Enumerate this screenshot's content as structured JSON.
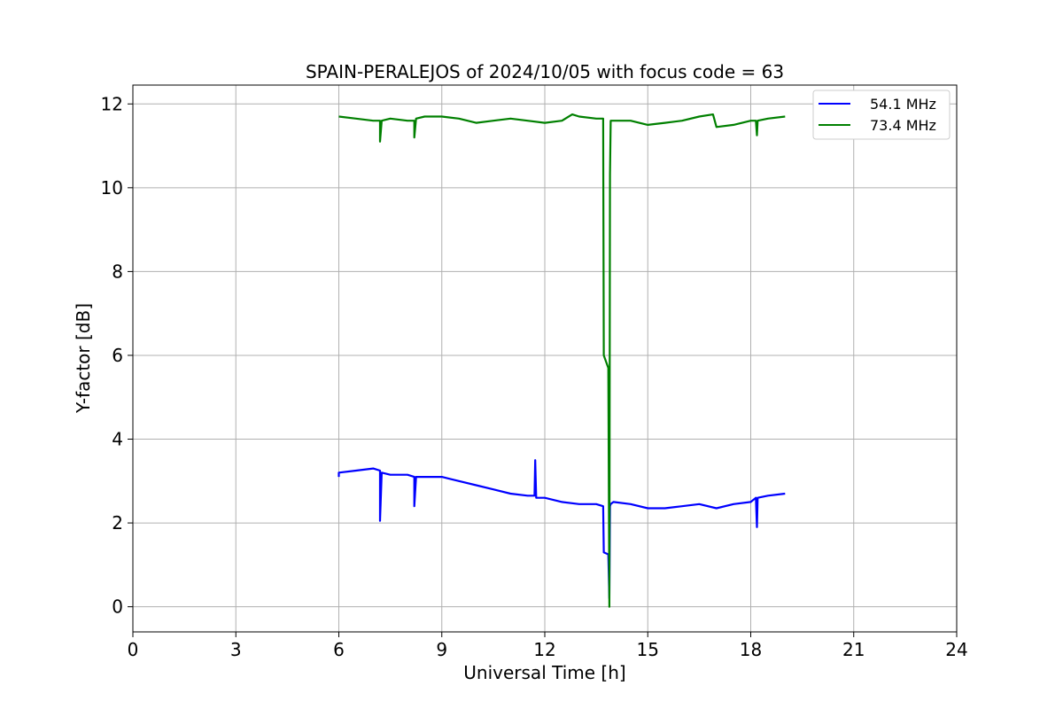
{
  "chart_data": {
    "type": "line",
    "title": "SPAIN-PERALEJOS of 2024/10/05 with focus code = 63",
    "xlabel": "Universal Time [h]",
    "ylabel": "Y-factor [dB]",
    "xlim": [
      0,
      24
    ],
    "ylim": [
      -0.6,
      12.45
    ],
    "xticks": [
      0,
      3,
      6,
      9,
      12,
      15,
      18,
      21,
      24
    ],
    "yticks": [
      0,
      2,
      4,
      6,
      8,
      10,
      12
    ],
    "xtick_labels": [
      "0",
      "3",
      "6",
      "9",
      "12",
      "15",
      "18",
      "21",
      "24"
    ],
    "ytick_labels": [
      "0",
      "2",
      "4",
      "6",
      "8",
      "10",
      "12"
    ],
    "grid": true,
    "legend_position": "top-right",
    "series": [
      {
        "name": "54.1 MHz",
        "color": "#0000ff",
        "x": [
          6.0,
          6.0,
          6.5,
          7.0,
          7.2,
          7.2,
          7.25,
          7.5,
          8.0,
          8.2,
          8.2,
          8.25,
          8.5,
          9.0,
          9.5,
          10.0,
          10.5,
          11.0,
          11.5,
          11.7,
          11.72,
          11.75,
          12.0,
          12.5,
          13.0,
          13.5,
          13.7,
          13.72,
          13.85,
          13.88,
          13.9,
          13.92,
          14.0,
          14.5,
          15.0,
          15.5,
          16.0,
          16.5,
          17.0,
          17.5,
          18.0,
          18.15,
          18.18,
          18.2,
          18.5,
          19.0
        ],
        "y": [
          3.1,
          3.2,
          3.25,
          3.3,
          3.25,
          2.05,
          3.2,
          3.15,
          3.15,
          3.1,
          2.4,
          3.1,
          3.1,
          3.1,
          3.0,
          2.9,
          2.8,
          2.7,
          2.65,
          2.65,
          3.5,
          2.6,
          2.6,
          2.5,
          2.45,
          2.45,
          2.4,
          1.3,
          1.25,
          0.2,
          2.4,
          2.45,
          2.5,
          2.45,
          2.35,
          2.35,
          2.4,
          2.45,
          2.35,
          2.45,
          2.5,
          2.6,
          1.9,
          2.6,
          2.65,
          2.7
        ]
      },
      {
        "name": "73.4 MHz",
        "color": "#008000",
        "x": [
          6.0,
          6.5,
          7.0,
          7.2,
          7.2,
          7.25,
          7.5,
          8.0,
          8.2,
          8.2,
          8.25,
          8.5,
          9.0,
          9.5,
          10.0,
          10.5,
          11.0,
          11.5,
          12.0,
          12.5,
          12.8,
          13.0,
          13.5,
          13.7,
          13.72,
          13.85,
          13.88,
          13.9,
          13.92,
          14.0,
          14.5,
          15.0,
          15.5,
          16.0,
          16.5,
          16.9,
          17.0,
          17.5,
          18.0,
          18.15,
          18.18,
          18.2,
          18.5,
          19.0
        ],
        "y": [
          11.7,
          11.65,
          11.6,
          11.6,
          11.1,
          11.6,
          11.65,
          11.6,
          11.6,
          11.2,
          11.65,
          11.7,
          11.7,
          11.65,
          11.55,
          11.6,
          11.65,
          11.6,
          11.55,
          11.6,
          11.75,
          11.7,
          11.65,
          11.65,
          6.0,
          5.7,
          0.0,
          10.3,
          11.6,
          11.6,
          11.6,
          11.5,
          11.55,
          11.6,
          11.7,
          11.75,
          11.45,
          11.5,
          11.6,
          11.6,
          11.25,
          11.6,
          11.65,
          11.7
        ]
      }
    ]
  }
}
